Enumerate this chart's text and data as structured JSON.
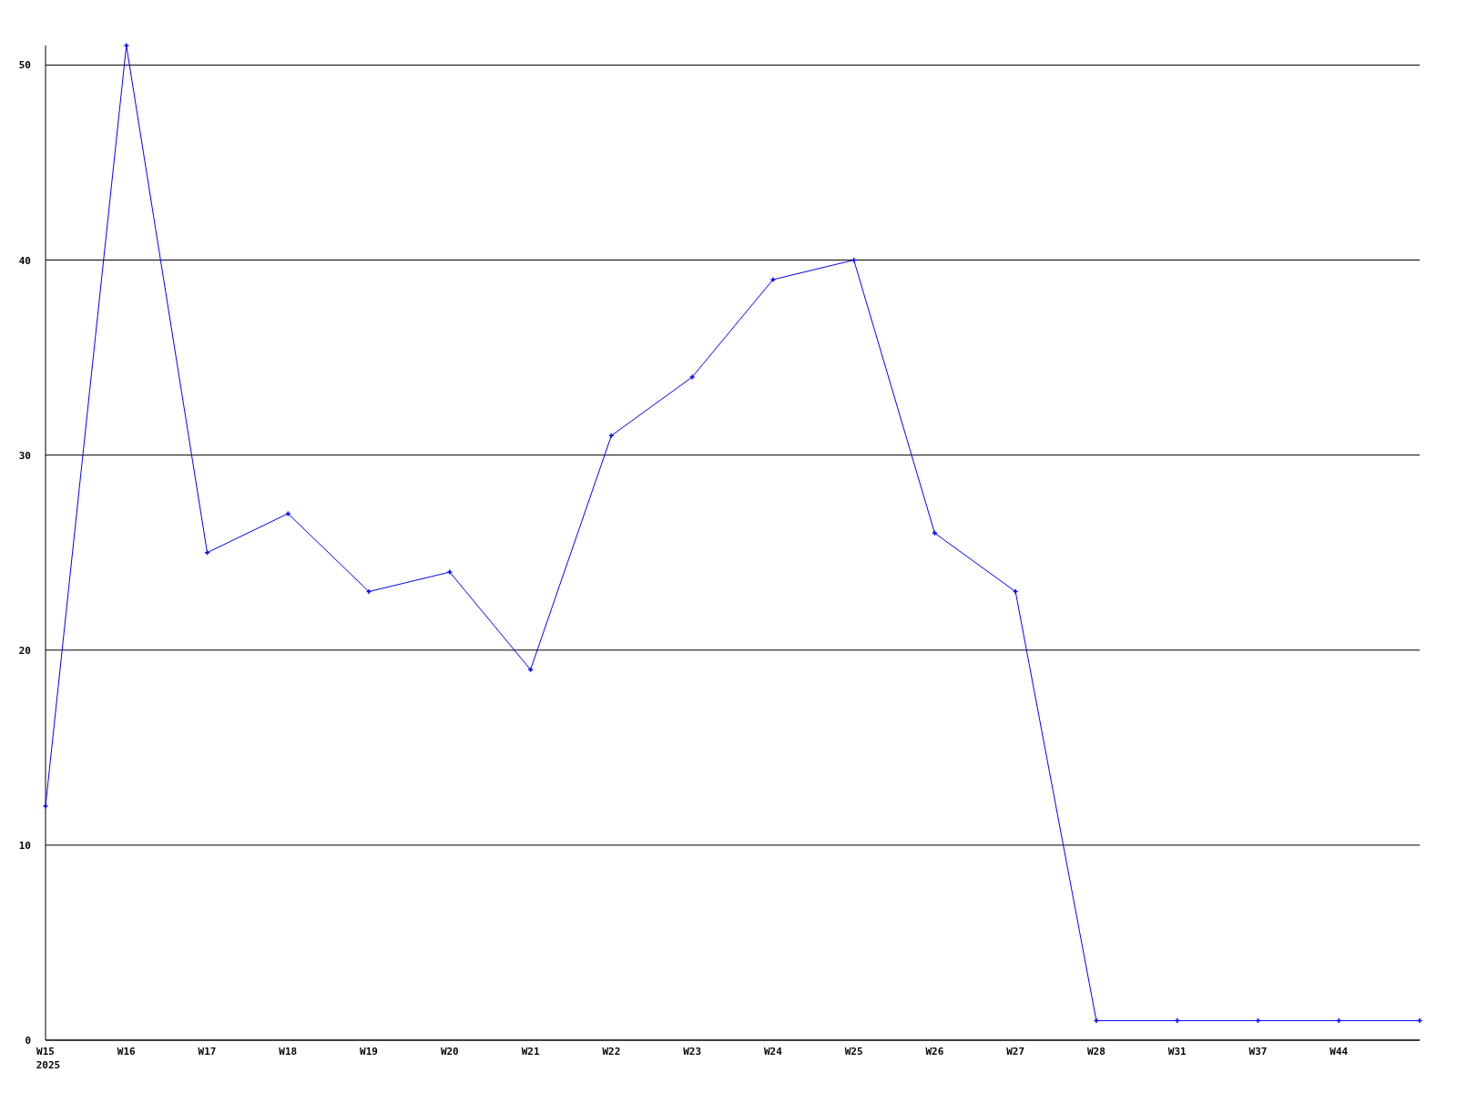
{
  "chart_data": {
    "type": "line",
    "categories": [
      "W15\n2025",
      "W16",
      "W17",
      "W18",
      "W19",
      "W20",
      "W21",
      "W22",
      "W23",
      "W24",
      "W25",
      "W26",
      "W27",
      "W28",
      "W31",
      "W37",
      "W44",
      null
    ],
    "series": [
      {
        "color": "#0000ff",
        "values": [
          12,
          51,
          25,
          27,
          23,
          24,
          19,
          31,
          34,
          39,
          40,
          26,
          23,
          1,
          1,
          1,
          1,
          1
        ]
      }
    ],
    "ylim": [
      0,
      51
    ],
    "yticks": [
      0,
      10,
      20,
      30,
      40,
      50
    ],
    "grid": "y",
    "marker": "cross",
    "line_style": "solid"
  }
}
